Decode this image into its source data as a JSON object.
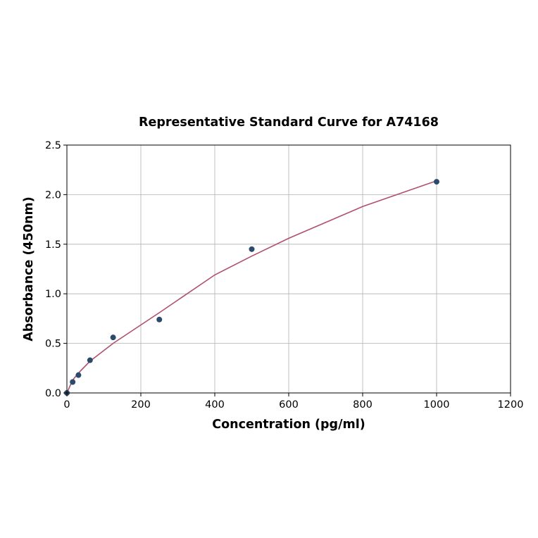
{
  "chart_data": {
    "type": "scatter",
    "title": "Representative Standard Curve for A74168",
    "xlabel": "Concentration (pg/ml)",
    "ylabel": "Absorbance (450nm)",
    "xlim": [
      0,
      1200
    ],
    "ylim": [
      0,
      2.5
    ],
    "xticks": [
      0,
      200,
      400,
      600,
      800,
      1000,
      1200
    ],
    "yticks": [
      0.0,
      0.5,
      1.0,
      1.5,
      2.0,
      2.5
    ],
    "xtick_labels": [
      "0",
      "200",
      "400",
      "600",
      "800",
      "1000",
      "1200"
    ],
    "ytick_labels": [
      "0.0",
      "0.5",
      "1.0",
      "1.5",
      "2.0",
      "2.5"
    ],
    "grid": true,
    "points": {
      "x": [
        0,
        15.6,
        31.25,
        62.5,
        125,
        250,
        500,
        1000
      ],
      "y": [
        0.0,
        0.11,
        0.18,
        0.33,
        0.56,
        0.74,
        1.45,
        2.13
      ],
      "color": "#2c4a6b"
    },
    "fit_curve": {
      "x": [
        0,
        15.6,
        31.25,
        62.5,
        125,
        250,
        400,
        500,
        600,
        800,
        1000
      ],
      "y": [
        0.0,
        0.13,
        0.2,
        0.32,
        0.5,
        0.81,
        1.19,
        1.38,
        1.56,
        1.88,
        2.14
      ],
      "color": "#b0506e"
    }
  }
}
